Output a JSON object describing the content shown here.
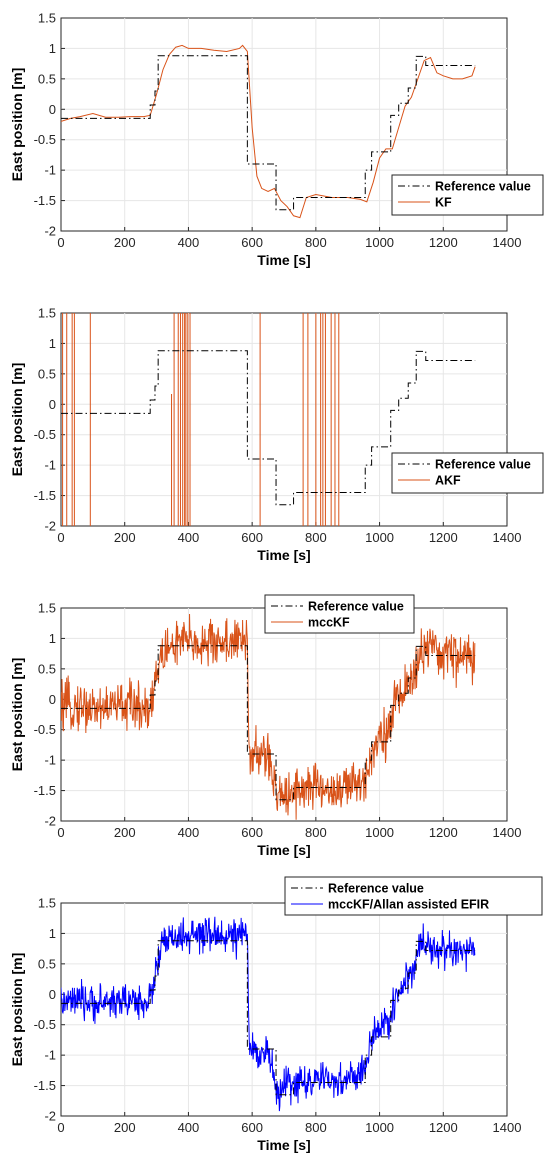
{
  "chart_data": [
    {
      "type": "line",
      "xlabel": "Time [s]",
      "ylabel": "East position [m]",
      "xlim": [
        0,
        1400
      ],
      "ylim": [
        -2,
        1.5
      ],
      "xticks": [
        "0",
        "200",
        "400",
        "600",
        "800",
        "1000",
        "1200",
        "1400"
      ],
      "yticks": [
        "1.5",
        "1",
        "0.5",
        "0",
        "-0.5",
        "-1",
        "-1.5",
        "-2"
      ],
      "grid": true,
      "legend_position": "bottom-right",
      "series": [
        {
          "name": "Reference value",
          "color": "#000000",
          "style": "dash-dot",
          "x": [
            0,
            280,
            280,
            295,
            295,
            305,
            305,
            585,
            585,
            675,
            675,
            730,
            730,
            955,
            955,
            975,
            975,
            1035,
            1035,
            1060,
            1060,
            1090,
            1090,
            1115,
            1115,
            1145,
            1145,
            1300
          ],
          "y": [
            -0.15,
            -0.15,
            0.07,
            0.07,
            0.3,
            0.3,
            0.88,
            0.88,
            -0.9,
            -0.9,
            -1.65,
            -1.65,
            -1.45,
            -1.45,
            -1.0,
            -1.0,
            -0.7,
            -0.7,
            -0.1,
            -0.1,
            0.1,
            0.1,
            0.35,
            0.35,
            0.87,
            0.87,
            0.72,
            0.72
          ]
        },
        {
          "name": "KF",
          "color": "#d95319",
          "style": "solid",
          "x": [
            0,
            30,
            60,
            100,
            140,
            180,
            220,
            260,
            280,
            300,
            320,
            340,
            360,
            380,
            400,
            440,
            480,
            520,
            560,
            570,
            585,
            600,
            615,
            630,
            650,
            670,
            690,
            710,
            730,
            750,
            770,
            800,
            850,
            900,
            940,
            960,
            980,
            1000,
            1020,
            1040,
            1060,
            1080,
            1100,
            1120,
            1140,
            1160,
            1180,
            1200,
            1230,
            1260,
            1290,
            1300
          ],
          "y": [
            -0.2,
            -0.15,
            -0.12,
            -0.07,
            -0.13,
            -0.13,
            -0.12,
            -0.12,
            -0.1,
            0.25,
            0.65,
            0.9,
            1.02,
            1.05,
            1.0,
            1.0,
            0.97,
            0.95,
            1.0,
            1.05,
            0.95,
            -0.3,
            -1.1,
            -1.3,
            -1.35,
            -1.3,
            -1.5,
            -1.6,
            -1.75,
            -1.78,
            -1.45,
            -1.4,
            -1.45,
            -1.45,
            -1.48,
            -1.52,
            -1.2,
            -0.8,
            -0.65,
            -0.65,
            -0.3,
            0.05,
            0.2,
            0.5,
            0.8,
            0.85,
            0.6,
            0.55,
            0.5,
            0.5,
            0.55,
            0.7
          ]
        }
      ]
    },
    {
      "type": "line",
      "xlabel": "Time [s]",
      "ylabel": "East position [m]",
      "xlim": [
        0,
        1400
      ],
      "ylim": [
        -2,
        1.5
      ],
      "xticks": [
        "0",
        "200",
        "400",
        "600",
        "800",
        "1000",
        "1200",
        "1400"
      ],
      "yticks": [
        "1.5",
        "1",
        "0.5",
        "0",
        "-0.5",
        "-1",
        "-1.5",
        "-2"
      ],
      "grid": true,
      "legend_position": "bottom-right",
      "series": [
        {
          "name": "Reference value",
          "color": "#000000",
          "style": "dash-dot",
          "x": [
            0,
            280,
            280,
            295,
            295,
            305,
            305,
            585,
            585,
            675,
            675,
            730,
            730,
            955,
            955,
            975,
            975,
            1035,
            1035,
            1060,
            1060,
            1090,
            1090,
            1115,
            1115,
            1145,
            1145,
            1300
          ],
          "y": [
            -0.15,
            -0.15,
            0.07,
            0.07,
            0.3,
            0.3,
            0.88,
            0.88,
            -0.9,
            -0.9,
            -1.65,
            -1.65,
            -1.45,
            -1.45,
            -1.0,
            -1.0,
            -0.7,
            -0.7,
            -0.1,
            -0.1,
            0.1,
            0.1,
            0.35,
            0.35,
            0.87,
            0.87,
            0.72,
            0.72
          ]
        },
        {
          "name": "AKF",
          "color": "#d95319",
          "style": "solid",
          "spikes_x": [
            5,
            18,
            35,
            42,
            92,
            355,
            368,
            375,
            382,
            388,
            392,
            398,
            405,
            625,
            760,
            775,
            800,
            815,
            822,
            830,
            848,
            860,
            872
          ],
          "partial_spikes_x": [
            347
          ],
          "partial_spike_y": [
            0.17,
            -2
          ]
        }
      ]
    },
    {
      "type": "line",
      "xlabel": "Time [s]",
      "ylabel": "East position [m]",
      "xlim": [
        0,
        1400
      ],
      "ylim": [
        -2,
        1.5
      ],
      "xticks": [
        "0",
        "200",
        "400",
        "600",
        "800",
        "1000",
        "1200",
        "1400"
      ],
      "yticks": [
        "1.5",
        "1",
        "0.5",
        "0",
        "-0.5",
        "-1",
        "-1.5",
        "-2"
      ],
      "grid": true,
      "legend_position": "top-center",
      "series": [
        {
          "name": "Reference value",
          "color": "#000000",
          "style": "dash-dot",
          "x": [
            0,
            280,
            280,
            295,
            295,
            305,
            305,
            585,
            585,
            675,
            675,
            730,
            730,
            955,
            955,
            975,
            975,
            1035,
            1035,
            1060,
            1060,
            1090,
            1090,
            1115,
            1115,
            1145,
            1145,
            1300
          ],
          "y": [
            -0.15,
            -0.15,
            0.07,
            0.07,
            0.3,
            0.3,
            0.88,
            0.88,
            -0.9,
            -0.9,
            -1.65,
            -1.65,
            -1.45,
            -1.45,
            -1.0,
            -1.0,
            -0.7,
            -0.7,
            -0.1,
            -0.1,
            0.1,
            0.1,
            0.35,
            0.35,
            0.87,
            0.87,
            0.72,
            0.72
          ]
        },
        {
          "name": "mccKF",
          "color": "#d95319",
          "style": "solid",
          "x": [
            0,
            50,
            100,
            150,
            200,
            250,
            280,
            300,
            320,
            350,
            400,
            450,
            500,
            550,
            575,
            585,
            590,
            600,
            620,
            650,
            675,
            690,
            700,
            730,
            760,
            800,
            850,
            900,
            940,
            955,
            970,
            990,
            1010,
            1030,
            1050,
            1070,
            1090,
            1110,
            1130,
            1150,
            1180,
            1210,
            1250,
            1300
          ],
          "y": [
            -0.15,
            -0.1,
            -0.15,
            -0.12,
            -0.08,
            -0.12,
            -0.1,
            0.4,
            0.75,
            0.9,
            0.95,
            0.9,
            0.95,
            0.95,
            0.9,
            1.1,
            -0.9,
            -0.9,
            -0.95,
            -0.9,
            -1.6,
            -1.6,
            -1.5,
            -1.5,
            -1.45,
            -1.45,
            -1.5,
            -1.45,
            -1.4,
            -1.3,
            -0.9,
            -0.7,
            -0.5,
            -0.6,
            0.0,
            0.1,
            0.3,
            0.35,
            0.85,
            0.8,
            0.75,
            0.75,
            0.7,
            0.7
          ],
          "noise_amplitude": 0.28
        }
      ]
    },
    {
      "type": "line",
      "xlabel": "Time [s]",
      "ylabel": "East position [m]",
      "xlim": [
        0,
        1400
      ],
      "ylim": [
        -2,
        1.5
      ],
      "xticks": [
        "0",
        "200",
        "400",
        "600",
        "800",
        "1000",
        "1200",
        "1400"
      ],
      "yticks": [
        "1.5",
        "1",
        "0.5",
        "0",
        "-0.5",
        "-1",
        "-1.5",
        "-2"
      ],
      "grid": true,
      "legend_position": "top-right",
      "series": [
        {
          "name": "Reference value",
          "color": "#000000",
          "style": "dash-dot",
          "x": [
            0,
            280,
            280,
            295,
            295,
            305,
            305,
            585,
            585,
            675,
            675,
            730,
            730,
            955,
            955,
            975,
            975,
            1035,
            1035,
            1060,
            1060,
            1090,
            1090,
            1115,
            1115,
            1145,
            1145,
            1300
          ],
          "y": [
            -0.15,
            -0.15,
            0.07,
            0.07,
            0.3,
            0.3,
            0.88,
            0.88,
            -0.9,
            -0.9,
            -1.65,
            -1.65,
            -1.45,
            -1.45,
            -1.0,
            -1.0,
            -0.7,
            -0.7,
            -0.1,
            -0.1,
            0.1,
            0.1,
            0.35,
            0.35,
            0.87,
            0.87,
            0.72,
            0.72
          ]
        },
        {
          "name": "mccKF/Allan assisted EFIR",
          "color": "#0000ff",
          "style": "solid",
          "x": [
            0,
            50,
            100,
            150,
            200,
            250,
            280,
            300,
            320,
            350,
            400,
            450,
            500,
            550,
            575,
            585,
            590,
            600,
            620,
            650,
            675,
            690,
            700,
            730,
            760,
            800,
            850,
            900,
            940,
            955,
            970,
            990,
            1010,
            1030,
            1050,
            1070,
            1090,
            1110,
            1130,
            1150,
            1180,
            1210,
            1250,
            1300
          ],
          "y": [
            -0.15,
            -0.12,
            -0.15,
            -0.12,
            -0.1,
            -0.12,
            -0.1,
            0.45,
            0.85,
            0.9,
            0.95,
            0.95,
            0.98,
            0.95,
            0.95,
            1.05,
            -0.85,
            -0.9,
            -0.95,
            -0.9,
            -1.6,
            -1.6,
            -1.5,
            -1.45,
            -1.45,
            -1.4,
            -1.45,
            -1.4,
            -1.3,
            -1.2,
            -0.85,
            -0.65,
            -0.45,
            -0.5,
            0.0,
            0.1,
            0.3,
            0.45,
            0.9,
            0.8,
            0.75,
            0.72,
            0.7,
            0.68
          ],
          "noise_amplitude": 0.2
        }
      ]
    }
  ]
}
